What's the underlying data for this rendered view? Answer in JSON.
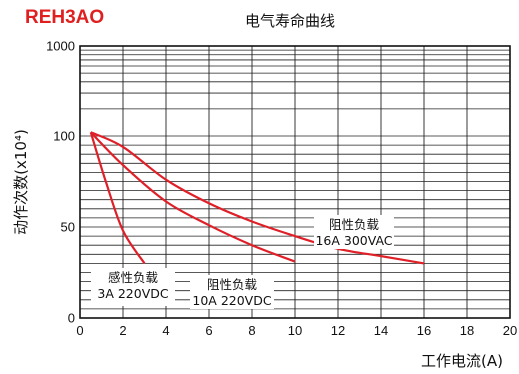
{
  "chart_data": {
    "type": "line",
    "model": "REH3AO",
    "title": "电气寿命曲线",
    "xlabel": "工作电流(A)",
    "ylabel": "动作次数(x10⁴)",
    "xlim": [
      0,
      20
    ],
    "x_ticks": [
      0,
      2,
      4,
      6,
      8,
      10,
      12,
      14,
      16,
      18,
      20
    ],
    "y_ticks": [
      {
        "value": 0,
        "label": "0"
      },
      {
        "value": 50,
        "label": "50"
      },
      {
        "value": 100,
        "label": "100"
      },
      {
        "value": 1000,
        "label": "1000"
      }
    ],
    "grid": true,
    "series": [
      {
        "name": "感性负载 3A 220VDC",
        "label_line1": "感性负载",
        "label_line2": "3A 220VDC",
        "points": [
          [
            0.5,
            110
          ],
          [
            1.2,
            75
          ],
          [
            2.0,
            48
          ],
          [
            3.0,
            30
          ]
        ]
      },
      {
        "name": "阻性负载 10A 220VDC",
        "label_line1": "阻性负载",
        "label_line2": "10A 220VDC",
        "points": [
          [
            0.5,
            110
          ],
          [
            2,
            84
          ],
          [
            4,
            64
          ],
          [
            6,
            51
          ],
          [
            8,
            40
          ],
          [
            10,
            31
          ]
        ]
      },
      {
        "name": "阻性负载 16A 300VAC",
        "label_line1": "阻性负载",
        "label_line2": "16A 300VAC",
        "points": [
          [
            0.5,
            110
          ],
          [
            2,
            94
          ],
          [
            4,
            76
          ],
          [
            6,
            63
          ],
          [
            8,
            53
          ],
          [
            10,
            45
          ],
          [
            12,
            38
          ],
          [
            14,
            34
          ],
          [
            16,
            30
          ]
        ]
      }
    ],
    "colors": {
      "curve": "#e02028",
      "model": "#e02020"
    }
  }
}
